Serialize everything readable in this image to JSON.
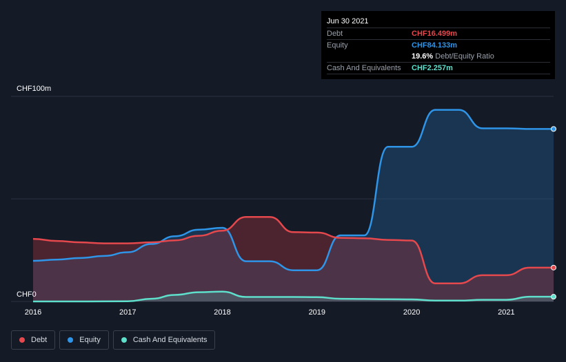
{
  "tooltip": {
    "date": "Jun 30 2021",
    "debt_label": "Debt",
    "debt_value": "CHF16.499m",
    "equity_label": "Equity",
    "equity_value": "CHF84.133m",
    "ratio_value": "19.6%",
    "ratio_label": "Debt/Equity Ratio",
    "cash_label": "Cash And Equivalents",
    "cash_value": "CHF2.257m"
  },
  "legend": [
    {
      "label": "Debt",
      "color": "#e5484d"
    },
    {
      "label": "Equity",
      "color": "#2f95e8"
    },
    {
      "label": "Cash And Equivalents",
      "color": "#5ee0cc"
    }
  ],
  "colors": {
    "debt": "#e5484d",
    "equity": "#2f95e8",
    "cash": "#5ee0cc",
    "background": "#151b26"
  },
  "chart_data": {
    "type": "area",
    "y_top_label": "CHF100m",
    "y_bottom_label": "CHF0",
    "ylim": [
      0,
      100
    ],
    "xlim": [
      2016,
      2021.5
    ],
    "x_ticks": [
      "2016",
      "2017",
      "2018",
      "2019",
      "2020",
      "2021"
    ],
    "grid": true,
    "legend_position": "bottom-left",
    "series": [
      {
        "name": "Debt",
        "x": [
          2016,
          2016.25,
          2016.5,
          2016.75,
          2017,
          2017.25,
          2017.5,
          2017.75,
          2018,
          2018.25,
          2018.5,
          2018.75,
          2019,
          2019.25,
          2019.5,
          2019.75,
          2020,
          2020.25,
          2020.5,
          2020.75,
          2021,
          2021.25,
          2021.5
        ],
        "y": [
          30.5,
          29.5,
          28.8,
          28.3,
          28.3,
          28.8,
          29.8,
          32.0,
          34.5,
          41.2,
          41.2,
          33.8,
          33.6,
          31.0,
          30.8,
          30.0,
          29.7,
          8.8,
          8.8,
          12.8,
          12.8,
          16.5,
          16.5
        ]
      },
      {
        "name": "Equity",
        "x": [
          2016,
          2016.25,
          2016.5,
          2016.75,
          2017,
          2017.25,
          2017.5,
          2017.75,
          2018,
          2018.25,
          2018.5,
          2018.75,
          2019,
          2019.25,
          2019.5,
          2019.75,
          2020,
          2020.25,
          2020.5,
          2020.75,
          2021,
          2021.25,
          2021.5
        ],
        "y": [
          19.8,
          20.4,
          21.2,
          22.2,
          24.0,
          28.0,
          31.8,
          35.0,
          35.9,
          19.6,
          19.6,
          15.2,
          15.2,
          32.2,
          32.2,
          75.4,
          75.4,
          93.4,
          93.4,
          84.4,
          84.4,
          84.1,
          84.1
        ]
      },
      {
        "name": "Cash And Equivalents",
        "x": [
          2016,
          2016.5,
          2017,
          2017.25,
          2017.5,
          2017.75,
          2018,
          2018.25,
          2018.5,
          2018.75,
          2019,
          2019.25,
          2019.5,
          2019.75,
          2020,
          2020.25,
          2020.5,
          2020.75,
          2021,
          2021.25,
          2021.5
        ],
        "y": [
          0.0,
          0.0,
          0.1,
          1.3,
          3.2,
          4.5,
          4.8,
          2.2,
          2.2,
          2.2,
          2.1,
          1.3,
          1.2,
          1.1,
          1.0,
          0.4,
          0.4,
          0.8,
          0.8,
          2.3,
          2.3
        ]
      }
    ]
  }
}
